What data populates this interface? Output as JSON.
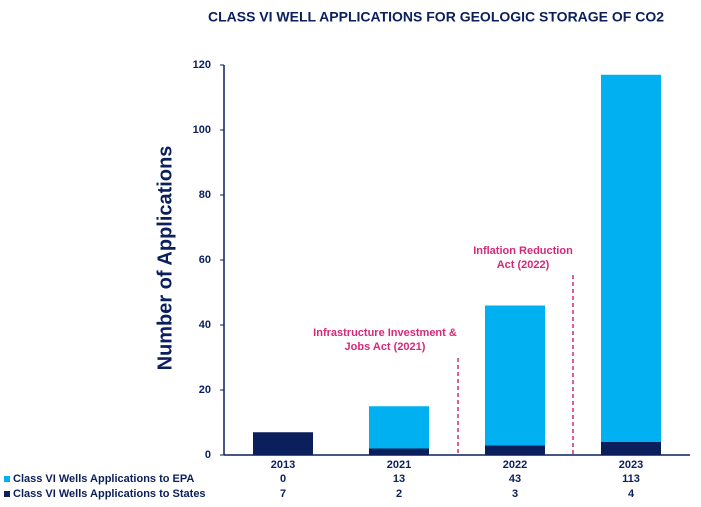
{
  "chart_data": {
    "type": "stacked-bar",
    "title": "CLASS VI WELL APPLICATIONS FOR GEOLOGIC STORAGE OF CO2",
    "y_label": "Number of Applications",
    "categories": [
      "2013",
      "2021",
      "2022",
      "2023"
    ],
    "series": [
      {
        "name": "Class VI Wells Applications to EPA",
        "color": "#00b0f0",
        "values": [
          0,
          13,
          43,
          113
        ]
      },
      {
        "name": "Class VI Wells Applications to States",
        "color": "#0a1f5c",
        "values": [
          7,
          2,
          3,
          4
        ]
      }
    ],
    "ylim": [
      0,
      120
    ],
    "yticks": [
      0,
      20,
      40,
      60,
      80,
      100,
      120
    ],
    "grid": false,
    "annotations": [
      {
        "lines": [
          "Infrastructure Investment &",
          "Jobs Act (2021)"
        ],
        "color": "#d6287a"
      },
      {
        "lines": [
          "Inflation Reduction",
          "Act (2022)"
        ],
        "color": "#d6287a"
      }
    ]
  }
}
